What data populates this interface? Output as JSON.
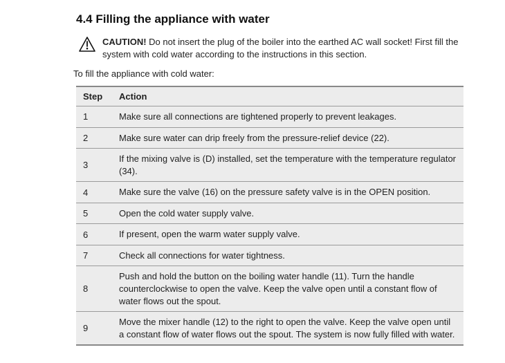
{
  "heading": "4.4 Filling the appliance with water",
  "caution": {
    "label": "CAUTION!",
    "text": " Do not insert the plug of the boiler into the earthed AC wall socket! First fill the system with cold water according to the instructions in this section."
  },
  "intro": "To fill the appliance with cold water:",
  "table": {
    "headers": {
      "step": "Step",
      "action": "Action"
    },
    "rows": [
      {
        "step": "1",
        "action": "Make sure all connections are tightened properly to prevent leakages."
      },
      {
        "step": "2",
        "action": "Make sure water can drip freely from the pressure-relief device (22)."
      },
      {
        "step": "3",
        "action": "If the mixing valve is (D) installed, set the temperature with the temperature regulator (34)."
      },
      {
        "step": "4",
        "action": "Make sure the valve (16) on the pressure safety valve is in the OPEN position."
      },
      {
        "step": "5",
        "action": "Open the cold water supply valve."
      },
      {
        "step": "6",
        "action": "If present, open the warm water supply valve."
      },
      {
        "step": "7",
        "action": "Check all connections for water tightness."
      },
      {
        "step": "8",
        "action": "Push and hold the button on the boiling water handle (11). Turn the handle counterclockwise to open the valve. Keep the valve open until a constant flow of water flows out the spout."
      },
      {
        "step": "9",
        "action": "Move the mixer handle (12) to the right to open the valve. Keep the valve open until a constant flow of water flows out the spout. The system is now fully filled with water."
      }
    ]
  },
  "colors": {
    "table_bg": "#ececec",
    "border": "#9a9a9a",
    "text": "#222222",
    "page_bg": "#ffffff"
  }
}
